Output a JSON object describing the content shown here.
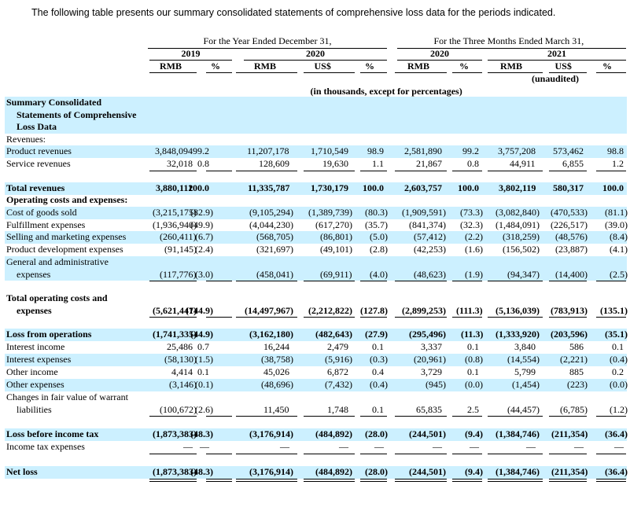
{
  "intro": "The following table presents our summary consolidated statements of comprehensive loss data for the periods indicated.",
  "header": {
    "period_year": "For the Year Ended December 31,",
    "period_quarter": "For the Three Months Ended March 31,",
    "years": [
      "2019",
      "2020",
      "2020",
      "2021"
    ],
    "currencies": [
      "RMB",
      "%",
      "RMB",
      "US$",
      "%",
      "RMB",
      "%",
      "RMB",
      "US$",
      "%"
    ],
    "unaudited": "(unaudited)",
    "units": "(in thousands, except for percentages)"
  },
  "rows": [
    {
      "label_lines": [
        "Summary Consolidated",
        "Statements of Comprehensive",
        "Loss Data"
      ],
      "bold": true,
      "shaded": true
    },
    {
      "label_lines": [
        "Revenues:"
      ]
    },
    {
      "label_lines": [
        "Product revenues"
      ],
      "shaded": true,
      "values": [
        "3,848,094",
        "99.2",
        "11,207,178",
        "1,710,549",
        "98.9",
        "2,581,890",
        "99.2",
        "3,757,208",
        "573,462",
        "98.8"
      ]
    },
    {
      "label_lines": [
        "Service revenues"
      ],
      "rule": "single",
      "values": [
        "32,018",
        "0.8",
        "128,609",
        "19,630",
        "1.1",
        "21,867",
        "0.8",
        "44,911",
        "6,855",
        "1.2"
      ]
    },
    {
      "label_lines": [
        "Total revenues"
      ],
      "bold": true,
      "shaded": true,
      "values": [
        "3,880,112",
        "100.0",
        "11,335,787",
        "1,730,179",
        "100.0",
        "2,603,757",
        "100.0",
        "3,802,119",
        "580,317",
        "100.0"
      ]
    },
    {
      "label_lines": [
        "Operating costs and expenses:"
      ],
      "bold": true
    },
    {
      "label_lines": [
        "Cost of goods sold"
      ],
      "shaded": true,
      "values": [
        "(3,215,175)",
        "(82.9)",
        "(9,105,294)",
        "(1,389,739)",
        "(80.3)",
        "(1,909,591)",
        "(73.3)",
        "(3,082,840)",
        "(470,533)",
        "(81.1)"
      ]
    },
    {
      "label_lines": [
        "Fulfillment expenses"
      ],
      "values": [
        "(1,936,940)",
        "(49.9)",
        "(4,044,230)",
        "(617,270)",
        "(35.7)",
        "(841,374)",
        "(32.3)",
        "(1,484,091)",
        "(226,517)",
        "(39.0)"
      ]
    },
    {
      "label_lines": [
        "Selling and marketing expenses"
      ],
      "shaded": true,
      "values": [
        "(260,411)",
        "(6.7)",
        "(568,705)",
        "(86,801)",
        "(5.0)",
        "(57,412)",
        "(2.2)",
        "(318,259)",
        "(48,576)",
        "(8.4)"
      ]
    },
    {
      "label_lines": [
        "Product development expenses"
      ],
      "values": [
        "(91,145)",
        "(2.4)",
        "(321,697)",
        "(49,101)",
        "(2.8)",
        "(42,253)",
        "(1.6)",
        "(156,502)",
        "(23,887)",
        "(4.1)"
      ]
    },
    {
      "label_lines": [
        "General and administrative",
        "expenses"
      ],
      "shaded": true,
      "rule": "single",
      "values": [
        "(117,776)",
        "(3.0)",
        "(458,041)",
        "(69,911)",
        "(4.0)",
        "(48,623)",
        "(1.9)",
        "(94,347)",
        "(14,400)",
        "(2.5)"
      ]
    },
    {
      "label_lines": [
        "Total operating costs and",
        "expenses"
      ],
      "bold": true,
      "rule": "single",
      "values": [
        "(5,621,447)",
        "(144.9)",
        "(14,497,967)",
        "(2,212,822)",
        "(127.8)",
        "(2,899,253)",
        "(111.3)",
        "(5,136,039)",
        "(783,913)",
        "(135.1)"
      ]
    },
    {
      "label_lines": [
        "Loss from operations"
      ],
      "bold": true,
      "shaded": true,
      "values": [
        "(1,741,335)",
        "(44.9)",
        "(3,162,180)",
        "(482,643)",
        "(27.9)",
        "(295,496)",
        "(11.3)",
        "(1,333,920)",
        "(203,596)",
        "(35.1)"
      ]
    },
    {
      "label_lines": [
        "Interest income"
      ],
      "values": [
        "25,486",
        "0.7",
        "16,244",
        "2,479",
        "0.1",
        "3,337",
        "0.1",
        "3,840",
        "586",
        "0.1"
      ]
    },
    {
      "label_lines": [
        "Interest expenses"
      ],
      "shaded": true,
      "values": [
        "(58,130)",
        "(1.5)",
        "(38,758)",
        "(5,916)",
        "(0.3)",
        "(20,961)",
        "(0.8)",
        "(14,554)",
        "(2,221)",
        "(0.4)"
      ]
    },
    {
      "label_lines": [
        "Other income"
      ],
      "values": [
        "4,414",
        "0.1",
        "45,026",
        "6,872",
        "0.4",
        "3,729",
        "0.1",
        "5,799",
        "885",
        "0.2"
      ]
    },
    {
      "label_lines": [
        "Other expenses"
      ],
      "shaded": true,
      "values": [
        "(3,146)",
        "(0.1)",
        "(48,696)",
        "(7,432)",
        "(0.4)",
        "(945)",
        "(0.0)",
        "(1,454)",
        "(223)",
        "(0.0)"
      ]
    },
    {
      "label_lines": [
        "Changes in fair value of warrant",
        "liabilities"
      ],
      "rule": "single",
      "values": [
        "(100,672)",
        "(2.6)",
        "11,450",
        "1,748",
        "0.1",
        "65,835",
        "2.5",
        "(44,457)",
        "(6,785)",
        "(1.2)"
      ]
    },
    {
      "label_lines": [
        "Loss before income tax"
      ],
      "bold": true,
      "shaded": true,
      "values": [
        "(1,873,383)",
        "(48.3)",
        "(3,176,914)",
        "(484,892)",
        "(28.0)",
        "(244,501)",
        "(9.4)",
        "(1,384,746)",
        "(211,354)",
        "(36.4)"
      ]
    },
    {
      "label_lines": [
        "Income tax expenses"
      ],
      "rule": "single",
      "values": [
        "—",
        "—",
        "—",
        "—",
        "—",
        "—",
        "—",
        "—",
        "—",
        "—"
      ]
    },
    {
      "label_lines": [
        "Net loss"
      ],
      "bold": true,
      "shaded": true,
      "rule": "double",
      "values": [
        "(1,873,383)",
        "(48.3)",
        "(3,176,914)",
        "(484,892)",
        "(28.0)",
        "(244,501)",
        "(9.4)",
        "(1,384,746)",
        "(211,354)",
        "(36.4)"
      ]
    }
  ]
}
